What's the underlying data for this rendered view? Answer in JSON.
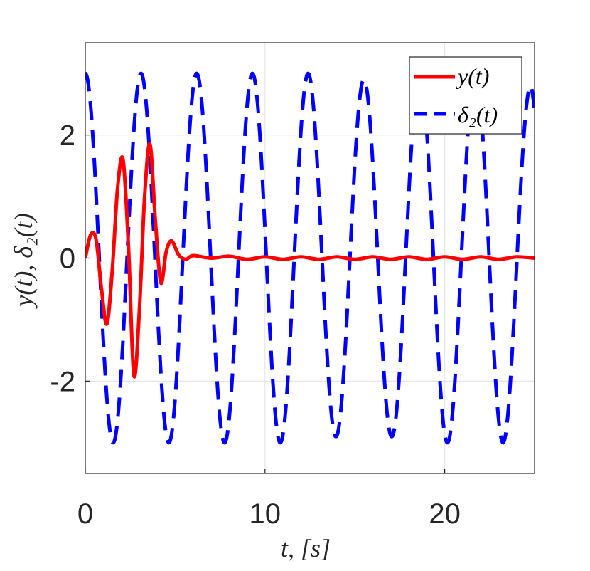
{
  "chart_data": {
    "type": "line",
    "title": "",
    "xlabel": "t, [s]",
    "ylabel": "y(t), δ₂(t)",
    "xlim": [
      0,
      25
    ],
    "ylim": [
      -3.5,
      3.5
    ],
    "xticks": [
      0,
      10,
      20
    ],
    "yticks": [
      -2,
      0,
      2
    ],
    "xtick_labels": [
      "0",
      "10",
      "20"
    ],
    "ytick_labels": [
      "-2",
      "0",
      "2"
    ],
    "grid": true,
    "legend_position": "top-right",
    "series": [
      {
        "name": "y(t)",
        "color": "#ff0000",
        "style": "solid",
        "x": [
          0,
          0.3,
          0.6,
          0.9,
          1.2,
          1.5,
          1.8,
          2.1,
          2.4,
          2.7,
          3.0,
          3.3,
          3.6,
          3.9,
          4.2,
          4.5,
          4.8,
          5.2,
          5.6,
          6.0,
          7,
          8,
          9,
          10,
          11,
          12,
          13,
          14,
          15,
          16,
          17,
          18,
          19,
          20,
          21,
          22,
          23,
          24,
          25
        ],
        "values": [
          0,
          0.38,
          0.3,
          -0.5,
          -1.07,
          -0.2,
          1.15,
          1.6,
          0.2,
          -1.9,
          -0.9,
          1.0,
          1.85,
          0.6,
          -0.4,
          0.1,
          0.28,
          0.05,
          -0.02,
          0.04,
          0.0,
          0.03,
          -0.02,
          0.02,
          -0.02,
          0.02,
          -0.02,
          0.02,
          -0.02,
          0.02,
          -0.02,
          0.02,
          -0.02,
          0.02,
          -0.02,
          0.02,
          -0.02,
          0.02,
          0.0
        ]
      },
      {
        "name": "δ₂(t)",
        "color": "#0000ff",
        "style": "dashed",
        "amplitude": 3.0,
        "x": [
          0,
          1.55,
          3.1,
          4.65,
          6.2,
          7.75,
          9.3,
          10.85,
          12.4,
          13.95,
          15.5,
          17.05,
          18.6,
          20.15,
          21.7,
          23.25,
          24.8,
          25
        ],
        "values": [
          3.0,
          -3.0,
          3.0,
          -3.0,
          3.0,
          -3.0,
          3.0,
          -3.0,
          3.0,
          -2.9,
          2.9,
          -2.9,
          3.0,
          -3.0,
          3.0,
          -3.0,
          2.8,
          2.6
        ],
        "period": 1.55
      }
    ]
  }
}
